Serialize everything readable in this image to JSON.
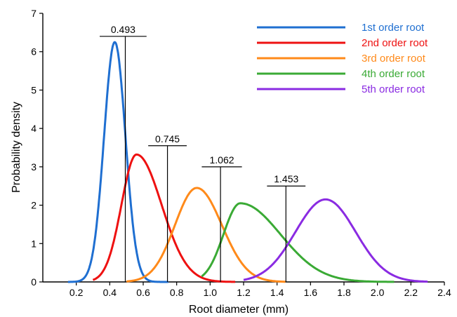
{
  "chart_data": {
    "type": "line",
    "title": "",
    "xlabel": "Root  diameter (mm)",
    "ylabel": "Probability density",
    "xlim": [
      0,
      2.4
    ],
    "ylim": [
      0,
      7
    ],
    "xticks": [
      "0.2",
      "0.4",
      "0.6",
      "0.8",
      "1.0",
      "1.2",
      "1.4",
      "1.6",
      "1.8",
      "2.0",
      "2.2",
      "2.4"
    ],
    "yticks": [
      "0",
      "1",
      "2",
      "3",
      "4",
      "5",
      "6",
      "7"
    ],
    "grid": false,
    "legend_position": "top-right",
    "series": [
      {
        "name": "1st order root",
        "color": "#1f6fd1",
        "distribution": "normal",
        "peak_x": 0.43,
        "peak_y": 6.25,
        "sigma_left": 0.064,
        "sigma_right": 0.064,
        "x_range": [
          0.15,
          0.75
        ]
      },
      {
        "name": "2nd order root",
        "color": "#ee1111",
        "distribution": "skewed",
        "peak_x": 0.56,
        "peak_y": 3.32,
        "sigma_left": 0.09,
        "sigma_right": 0.15,
        "x_range": [
          0.3,
          1.15
        ]
      },
      {
        "name": "3rd order root",
        "color": "#ff8a1a",
        "distribution": "skewed",
        "peak_x": 0.92,
        "peak_y": 2.45,
        "sigma_left": 0.13,
        "sigma_right": 0.15,
        "x_range": [
          0.5,
          1.45
        ]
      },
      {
        "name": "4th order root",
        "color": "#3aaa35",
        "distribution": "skewed",
        "peak_x": 1.18,
        "peak_y": 2.05,
        "sigma_left": 0.1,
        "sigma_right": 0.24,
        "x_range": [
          0.95,
          2.1
        ]
      },
      {
        "name": "5th order root",
        "color": "#8a2be2",
        "distribution": "normal",
        "peak_x": 1.69,
        "peak_y": 2.15,
        "sigma_left": 0.18,
        "sigma_right": 0.18,
        "x_range": [
          1.2,
          2.3
        ]
      }
    ],
    "annotations": [
      {
        "label": "0.493",
        "x": 0.493,
        "bar_y": 6.4,
        "bar_x_range": [
          0.34,
          0.62
        ]
      },
      {
        "label": "0.745",
        "x": 0.745,
        "bar_y": 3.55,
        "bar_x_range": [
          0.63,
          0.86
        ]
      },
      {
        "label": "1.062",
        "x": 1.062,
        "bar_y": 3.0,
        "bar_x_range": [
          0.95,
          1.19
        ]
      },
      {
        "label": "1.453",
        "x": 1.453,
        "bar_y": 2.5,
        "bar_x_range": [
          1.34,
          1.57
        ]
      }
    ]
  }
}
